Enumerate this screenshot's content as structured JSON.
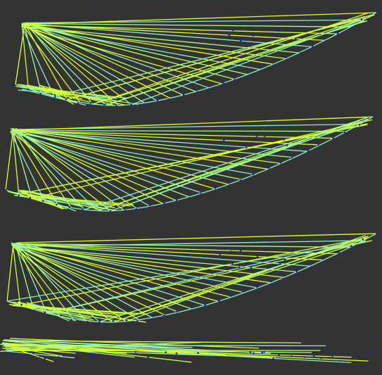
{
  "colors": {
    "background": "#333333",
    "line_yellow": "#e6ff1a",
    "line_lime": "#c8ff3c",
    "line_green": "#a6ff8a",
    "line_cyan": "#8af0c8",
    "point": "#1a1acc"
  },
  "panels": [
    {
      "id": "panel-1",
      "type": "line-fan-plot"
    },
    {
      "id": "panel-2",
      "type": "line-fan-plot"
    },
    {
      "id": "panel-3",
      "type": "line-fan-plot"
    },
    {
      "id": "panel-4",
      "type": "line-fan-plot"
    }
  ]
}
